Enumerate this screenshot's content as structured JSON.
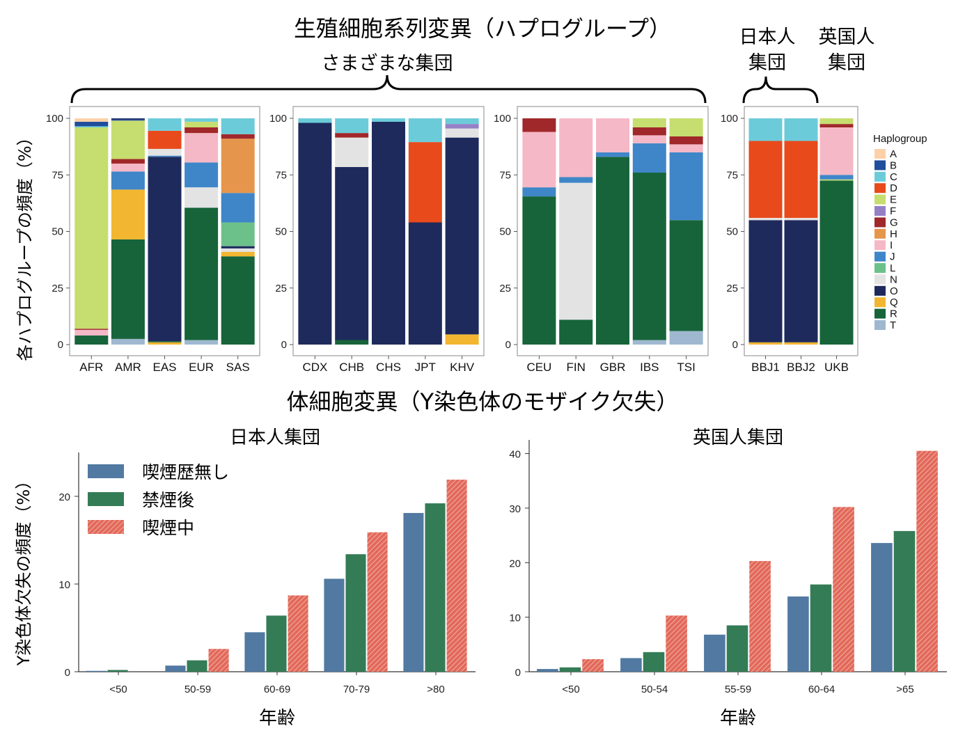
{
  "headings": {
    "germline_title": "生殖細胞系列変異（ハプログループ）",
    "various_groups": "さまざまな集団",
    "japanese_group": "日本人\n集団",
    "british_group": "英国人\n集団",
    "somatic_title": "体細胞変異（Y染色体のモザイク欠失）",
    "top_ylabel": "各ハプログループの頻度（%）"
  },
  "colors": {
    "A": "#fdd1a8",
    "B": "#1f4e9c",
    "C": "#6ccbd9",
    "D": "#e84a1b",
    "E": "#c6dd6f",
    "F": "#9580c6",
    "G": "#a0282a",
    "H": "#e6964c",
    "I": "#f5b8c6",
    "J": "#3f86c9",
    "L": "#6cc18a",
    "N": "#e3e3e3",
    "O": "#1e2a5c",
    "Q": "#f2b630",
    "R": "#17643a",
    "T": "#9fb8cf",
    "never": "#5179a2",
    "former": "#347c56",
    "current": "#e2695a"
  },
  "chart_data": [
    {
      "type": "bar",
      "stacked": true,
      "panel": "top-1",
      "legend_title": "Haplogroup",
      "haplogroups": [
        "A",
        "B",
        "C",
        "D",
        "E",
        "F",
        "G",
        "H",
        "I",
        "J",
        "L",
        "N",
        "O",
        "Q",
        "R",
        "T"
      ],
      "categories": [
        "AFR",
        "AMR",
        "EAS",
        "EUR",
        "SAS"
      ],
      "ylim": [
        0,
        100
      ],
      "yticks": [
        0,
        25,
        50,
        75,
        100
      ],
      "stacks": [
        [
          [
            "R",
            4
          ],
          [
            "I",
            2.5
          ],
          [
            "G",
            0.5
          ],
          [
            "E",
            89
          ],
          [
            "C",
            0.5
          ],
          [
            "B",
            2
          ],
          [
            "A",
            1.5
          ]
        ],
        [
          [
            "T",
            2.5
          ],
          [
            "R",
            44
          ],
          [
            "Q",
            22
          ],
          [
            "J",
            8
          ],
          [
            "I",
            3.5
          ],
          [
            "G",
            2
          ],
          [
            "E",
            17
          ],
          [
            "B",
            0.5
          ],
          [
            "O",
            0.5
          ]
        ],
        [
          [
            "Q",
            1
          ],
          [
            "R",
            0.5
          ],
          [
            "O",
            81.5
          ],
          [
            "J",
            0.5
          ],
          [
            "N",
            3
          ],
          [
            "D",
            8
          ],
          [
            "C",
            5.5
          ]
        ],
        [
          [
            "T",
            2
          ],
          [
            "R",
            58.5
          ],
          [
            "N",
            9
          ],
          [
            "J",
            11
          ],
          [
            "I",
            13
          ],
          [
            "G",
            2.5
          ],
          [
            "E",
            2.5
          ],
          [
            "C",
            1.5
          ]
        ],
        [
          [
            "R",
            39
          ],
          [
            "Q",
            2
          ],
          [
            "N",
            1.5
          ],
          [
            "O",
            1
          ],
          [
            "L",
            10.5
          ],
          [
            "J",
            13
          ],
          [
            "H",
            24
          ],
          [
            "G",
            2
          ],
          [
            "C",
            7
          ]
        ]
      ]
    },
    {
      "type": "bar",
      "stacked": true,
      "panel": "top-2",
      "categories": [
        "CDX",
        "CHB",
        "CHS",
        "JPT",
        "KHV"
      ],
      "ylim": [
        0,
        100
      ],
      "yticks": [
        0,
        25,
        50,
        75,
        100
      ],
      "stacks": [
        [
          [
            "O",
            98
          ],
          [
            "C",
            2
          ]
        ],
        [
          [
            "R",
            2
          ],
          [
            "O",
            76.5
          ],
          [
            "N",
            13
          ],
          [
            "G",
            2
          ],
          [
            "C",
            6.5
          ]
        ],
        [
          [
            "O",
            98.5
          ],
          [
            "C",
            1.5
          ]
        ],
        [
          [
            "O",
            54
          ],
          [
            "D",
            35.5
          ],
          [
            "C",
            10.5
          ]
        ],
        [
          [
            "Q",
            4.5
          ],
          [
            "O",
            87
          ],
          [
            "N",
            4
          ],
          [
            "F",
            2
          ],
          [
            "C",
            2.5
          ]
        ]
      ]
    },
    {
      "type": "bar",
      "stacked": true,
      "panel": "top-3",
      "categories": [
        "CEU",
        "FIN",
        "GBR",
        "IBS",
        "TSI"
      ],
      "ylim": [
        0,
        100
      ],
      "yticks": [
        0,
        25,
        50,
        75,
        100
      ],
      "stacks": [
        [
          [
            "R",
            65.5
          ],
          [
            "J",
            4
          ],
          [
            "I",
            24.5
          ],
          [
            "G",
            6
          ]
        ],
        [
          [
            "R",
            11
          ],
          [
            "N",
            60.5
          ],
          [
            "J",
            2.5
          ],
          [
            "I",
            26
          ]
        ],
        [
          [
            "R",
            83
          ],
          [
            "J",
            2
          ],
          [
            "I",
            15
          ]
        ],
        [
          [
            "T",
            2
          ],
          [
            "R",
            74
          ],
          [
            "J",
            13
          ],
          [
            "I",
            3.5
          ],
          [
            "G",
            3.5
          ],
          [
            "E",
            4
          ]
        ],
        [
          [
            "T",
            6
          ],
          [
            "R",
            49
          ],
          [
            "J",
            30
          ],
          [
            "I",
            3.5
          ],
          [
            "G",
            3.5
          ],
          [
            "E",
            8
          ]
        ]
      ]
    },
    {
      "type": "bar",
      "stacked": true,
      "panel": "top-4",
      "categories": [
        "BBJ1",
        "BBJ2",
        "UKB"
      ],
      "ylim": [
        0,
        100
      ],
      "yticks": [
        0,
        25,
        50,
        75,
        100
      ],
      "stacks": [
        [
          [
            "Q",
            1
          ],
          [
            "O",
            54
          ],
          [
            "N",
            1
          ],
          [
            "D",
            34
          ],
          [
            "C",
            10
          ]
        ],
        [
          [
            "Q",
            1
          ],
          [
            "O",
            54
          ],
          [
            "N",
            1
          ],
          [
            "D",
            34
          ],
          [
            "C",
            10
          ]
        ],
        [
          [
            "R",
            72.5
          ],
          [
            "E",
            0.5
          ],
          [
            "J",
            2
          ],
          [
            "I",
            21
          ],
          [
            "G",
            1.5
          ],
          [
            "E",
            2.5
          ]
        ]
      ]
    },
    {
      "type": "bar",
      "panel": "bottom-left",
      "title": "日本人集団",
      "xlabel": "年齢",
      "ylabel": "Y染色体欠失の頻度（%）",
      "categories": [
        "<50",
        "50-59",
        "60-69",
        "70-79",
        ">80"
      ],
      "ylim": [
        0,
        25
      ],
      "yticks": [
        0,
        10,
        20
      ],
      "legend_position": "top-left",
      "series": [
        {
          "name": "喫煙歴無し",
          "values": [
            0.1,
            0.7,
            4.5,
            10.6,
            18.1
          ]
        },
        {
          "name": "禁煙後",
          "values": [
            0.2,
            1.3,
            6.4,
            13.4,
            19.2
          ]
        },
        {
          "name": "喫煙中",
          "values": [
            0,
            2.6,
            8.7,
            15.9,
            21.9
          ]
        }
      ]
    },
    {
      "type": "bar",
      "panel": "bottom-right",
      "title": "英国人集団",
      "xlabel": "年齢",
      "categories": [
        "<50",
        "50-54",
        "55-59",
        "60-64",
        ">65"
      ],
      "ylim": [
        0,
        42.5
      ],
      "yticks": [
        0,
        10,
        20,
        30,
        40
      ],
      "series": [
        {
          "name": "喫煙歴無し",
          "values": [
            0.5,
            2.5,
            6.8,
            13.8,
            23.6
          ]
        },
        {
          "name": "禁煙後",
          "values": [
            0.8,
            3.6,
            8.5,
            16.0,
            25.8
          ]
        },
        {
          "name": "喫煙中",
          "values": [
            2.3,
            10.3,
            20.3,
            30.2,
            40.5
          ]
        }
      ]
    }
  ]
}
